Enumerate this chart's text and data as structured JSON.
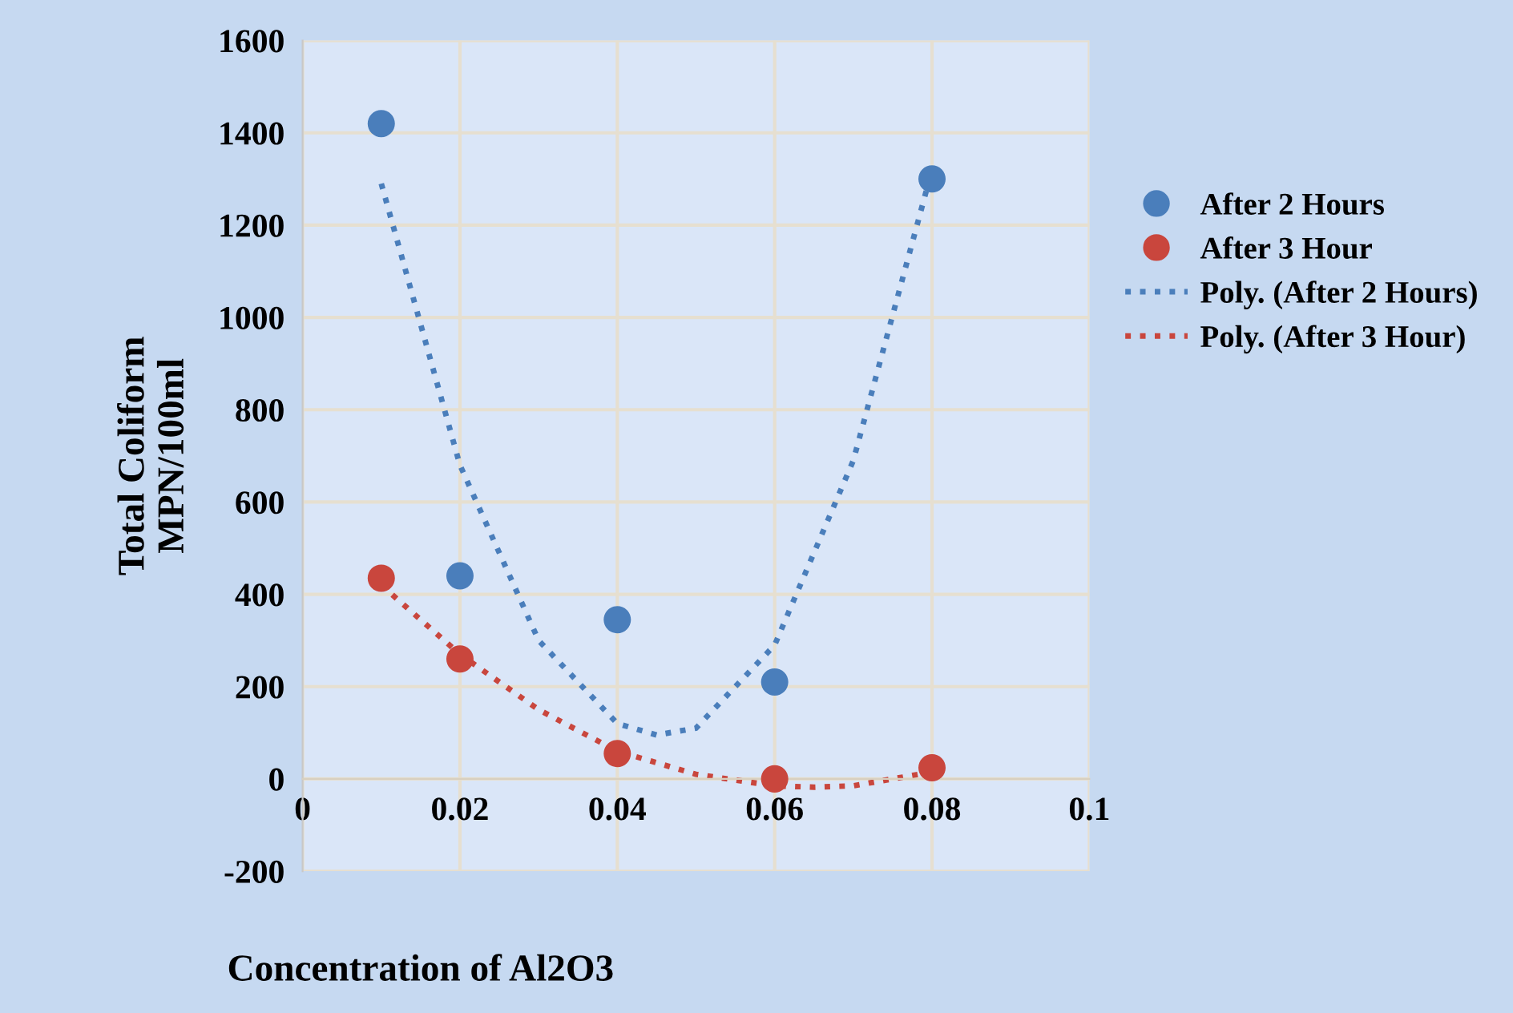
{
  "chart_data": {
    "type": "scatter",
    "xlabel": "Concentration of Al2O3",
    "ylabel": "Total Coliform\nMPN/100ml",
    "x": [
      0.01,
      0.02,
      0.04,
      0.06,
      0.08
    ],
    "series": [
      {
        "name": "After 2 Hours",
        "color": "#4a7ebb",
        "values": [
          1420,
          440,
          345,
          210,
          1300
        ],
        "marker": "circle"
      },
      {
        "name": "After 3 Hour",
        "color": "#c9463d",
        "values": [
          435,
          260,
          55,
          0,
          24
        ],
        "marker": "circle"
      },
      {
        "name": "Poly. (After 2 Hours)",
        "type": "line",
        "line_style": "dotted",
        "color": "#4a7ebb",
        "x": [
          0.01,
          0.02,
          0.03,
          0.04,
          0.045,
          0.05,
          0.06,
          0.07,
          0.08
        ],
        "values": [
          1290,
          680,
          300,
          120,
          95,
          110,
          290,
          690,
          1320
        ]
      },
      {
        "name": "Poly. (After 3 Hour)",
        "type": "line",
        "line_style": "dotted",
        "color": "#c9463d",
        "x": [
          0.01,
          0.02,
          0.03,
          0.04,
          0.05,
          0.06,
          0.065,
          0.07,
          0.08
        ],
        "values": [
          420,
          270,
          150,
          60,
          10,
          -15,
          -18,
          -15,
          15
        ]
      }
    ],
    "xlim": [
      0,
      0.1
    ],
    "xticks": [
      0,
      0.02,
      0.04,
      0.06,
      0.08,
      0.1
    ],
    "ylim": [
      -200,
      1600
    ],
    "yticks": [
      -200,
      0,
      200,
      400,
      600,
      800,
      1000,
      1200,
      1400,
      1600
    ],
    "grid": true,
    "legend": "right"
  }
}
